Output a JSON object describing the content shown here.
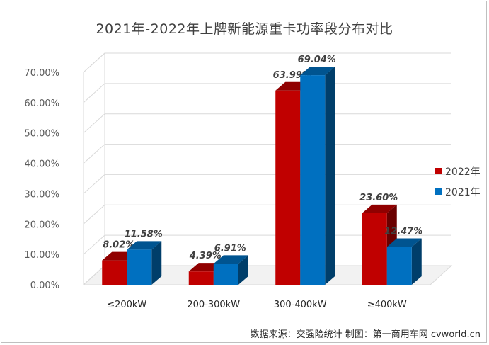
{
  "chart_data": {
    "type": "bar",
    "title": "2021年-2022年上牌新能源重卡功率段分布对比",
    "categories": [
      "≤200kW",
      "200-300kW",
      "300-400kW",
      "≥400kW"
    ],
    "series": [
      {
        "name": "2022年",
        "values": [
          8.02,
          4.39,
          63.99,
          23.6
        ],
        "labels": [
          "8.02%",
          "4.39%",
          "63.99%",
          "23.60%"
        ],
        "color": "#c00000"
      },
      {
        "name": "2021年",
        "values": [
          11.58,
          6.91,
          69.04,
          12.47
        ],
        "labels": [
          "11.58%",
          "6.91%",
          "69.04%",
          "12.47%"
        ],
        "color": "#0070c0"
      }
    ],
    "y_ticks": [
      "0.00%",
      "10.00%",
      "20.00%",
      "30.00%",
      "40.00%",
      "50.00%",
      "60.00%",
      "70.00%"
    ],
    "ylim": [
      0,
      70
    ],
    "grid": true,
    "legend": "right",
    "style": "3d-column"
  },
  "source_note": "数据来源：交强险统计  制图：第一商用车网 cvworld.cn"
}
